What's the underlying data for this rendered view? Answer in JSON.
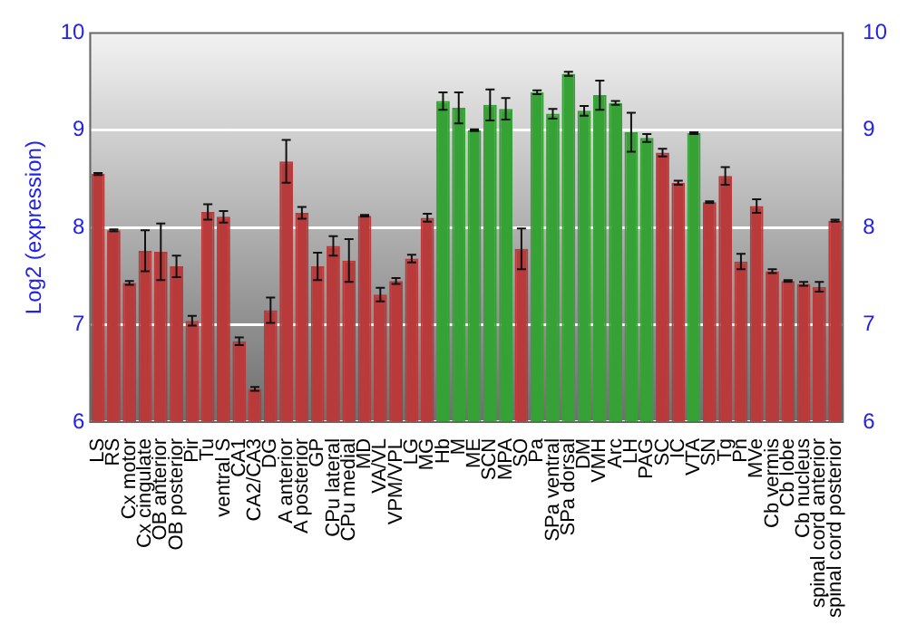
{
  "chart_data": {
    "type": "bar",
    "ylabel": "Log2 (expression)",
    "categories": [
      "LS",
      "RS",
      "Cx motor",
      "Cx cingulate",
      "OB anterior",
      "OB posterior",
      "Pir",
      "Tu",
      "ventral S",
      "CA1",
      "CA2/CA3",
      "DG",
      "A anterior",
      "A posterior",
      "GP",
      "CPu lateral",
      "CPu medial",
      "MD",
      "VA/VL",
      "VPM/VPL",
      "LG",
      "MG",
      "Hb",
      "M",
      "ME",
      "SCN",
      "MPA",
      "SO",
      "Pa",
      "SPa ventral",
      "SPa dorsal",
      "DM",
      "VMH",
      "Arc",
      "LH",
      "PAG",
      "SC",
      "IC",
      "VTA",
      "SN",
      "Tg",
      "Pn",
      "MVe",
      "Cb vermis",
      "Cb lobe",
      "Cb nucleus",
      "spinal cord anterior",
      "spinal cord posterior"
    ],
    "values": [
      8.55,
      7.97,
      7.43,
      7.76,
      7.75,
      7.6,
      7.04,
      8.16,
      8.11,
      6.83,
      6.34,
      7.15,
      8.68,
      8.15,
      7.6,
      7.81,
      7.66,
      8.12,
      7.31,
      7.45,
      7.68,
      8.1,
      9.3,
      9.23,
      9.0,
      9.26,
      9.22,
      7.78,
      9.39,
      9.17,
      9.58,
      9.2,
      9.36,
      9.28,
      8.98,
      8.92,
      8.77,
      8.46,
      8.97,
      8.26,
      8.53,
      7.65,
      8.22,
      7.55,
      7.45,
      7.42,
      7.39,
      8.07
    ],
    "errors": [
      0.01,
      0.01,
      0.02,
      0.21,
      0.29,
      0.11,
      0.05,
      0.08,
      0.06,
      0.04,
      0.02,
      0.13,
      0.22,
      0.06,
      0.14,
      0.1,
      0.22,
      0.01,
      0.07,
      0.03,
      0.04,
      0.04,
      0.09,
      0.16,
      0.01,
      0.16,
      0.11,
      0.21,
      0.02,
      0.05,
      0.02,
      0.05,
      0.15,
      0.02,
      0.2,
      0.04,
      0.04,
      0.02,
      0.01,
      0.01,
      0.09,
      0.08,
      0.07,
      0.02,
      0.01,
      0.02,
      0.05,
      0.01
    ],
    "colors": [
      "#b83a3a",
      "#b83a3a",
      "#b83a3a",
      "#b83a3a",
      "#b83a3a",
      "#b83a3a",
      "#b83a3a",
      "#b83a3a",
      "#b83a3a",
      "#b83a3a",
      "#b83a3a",
      "#b83a3a",
      "#b83a3a",
      "#b83a3a",
      "#b83a3a",
      "#b83a3a",
      "#b83a3a",
      "#b83a3a",
      "#b83a3a",
      "#b83a3a",
      "#b83a3a",
      "#b83a3a",
      "#36a236",
      "#36a236",
      "#36a236",
      "#36a236",
      "#36a236",
      "#b83a3a",
      "#36a236",
      "#36a236",
      "#36a236",
      "#36a236",
      "#36a236",
      "#36a236",
      "#36a236",
      "#36a236",
      "#b83a3a",
      "#b83a3a",
      "#36a236",
      "#b83a3a",
      "#b83a3a",
      "#b83a3a",
      "#b83a3a",
      "#b83a3a",
      "#b83a3a",
      "#b83a3a",
      "#b83a3a",
      "#b83a3a"
    ],
    "ylim": [
      6,
      10
    ],
    "yticks": [
      6,
      7,
      8,
      9,
      10
    ],
    "y2lim": [
      6,
      10
    ],
    "y2ticks": [
      6,
      7,
      8,
      9,
      10
    ],
    "grid": "y"
  }
}
